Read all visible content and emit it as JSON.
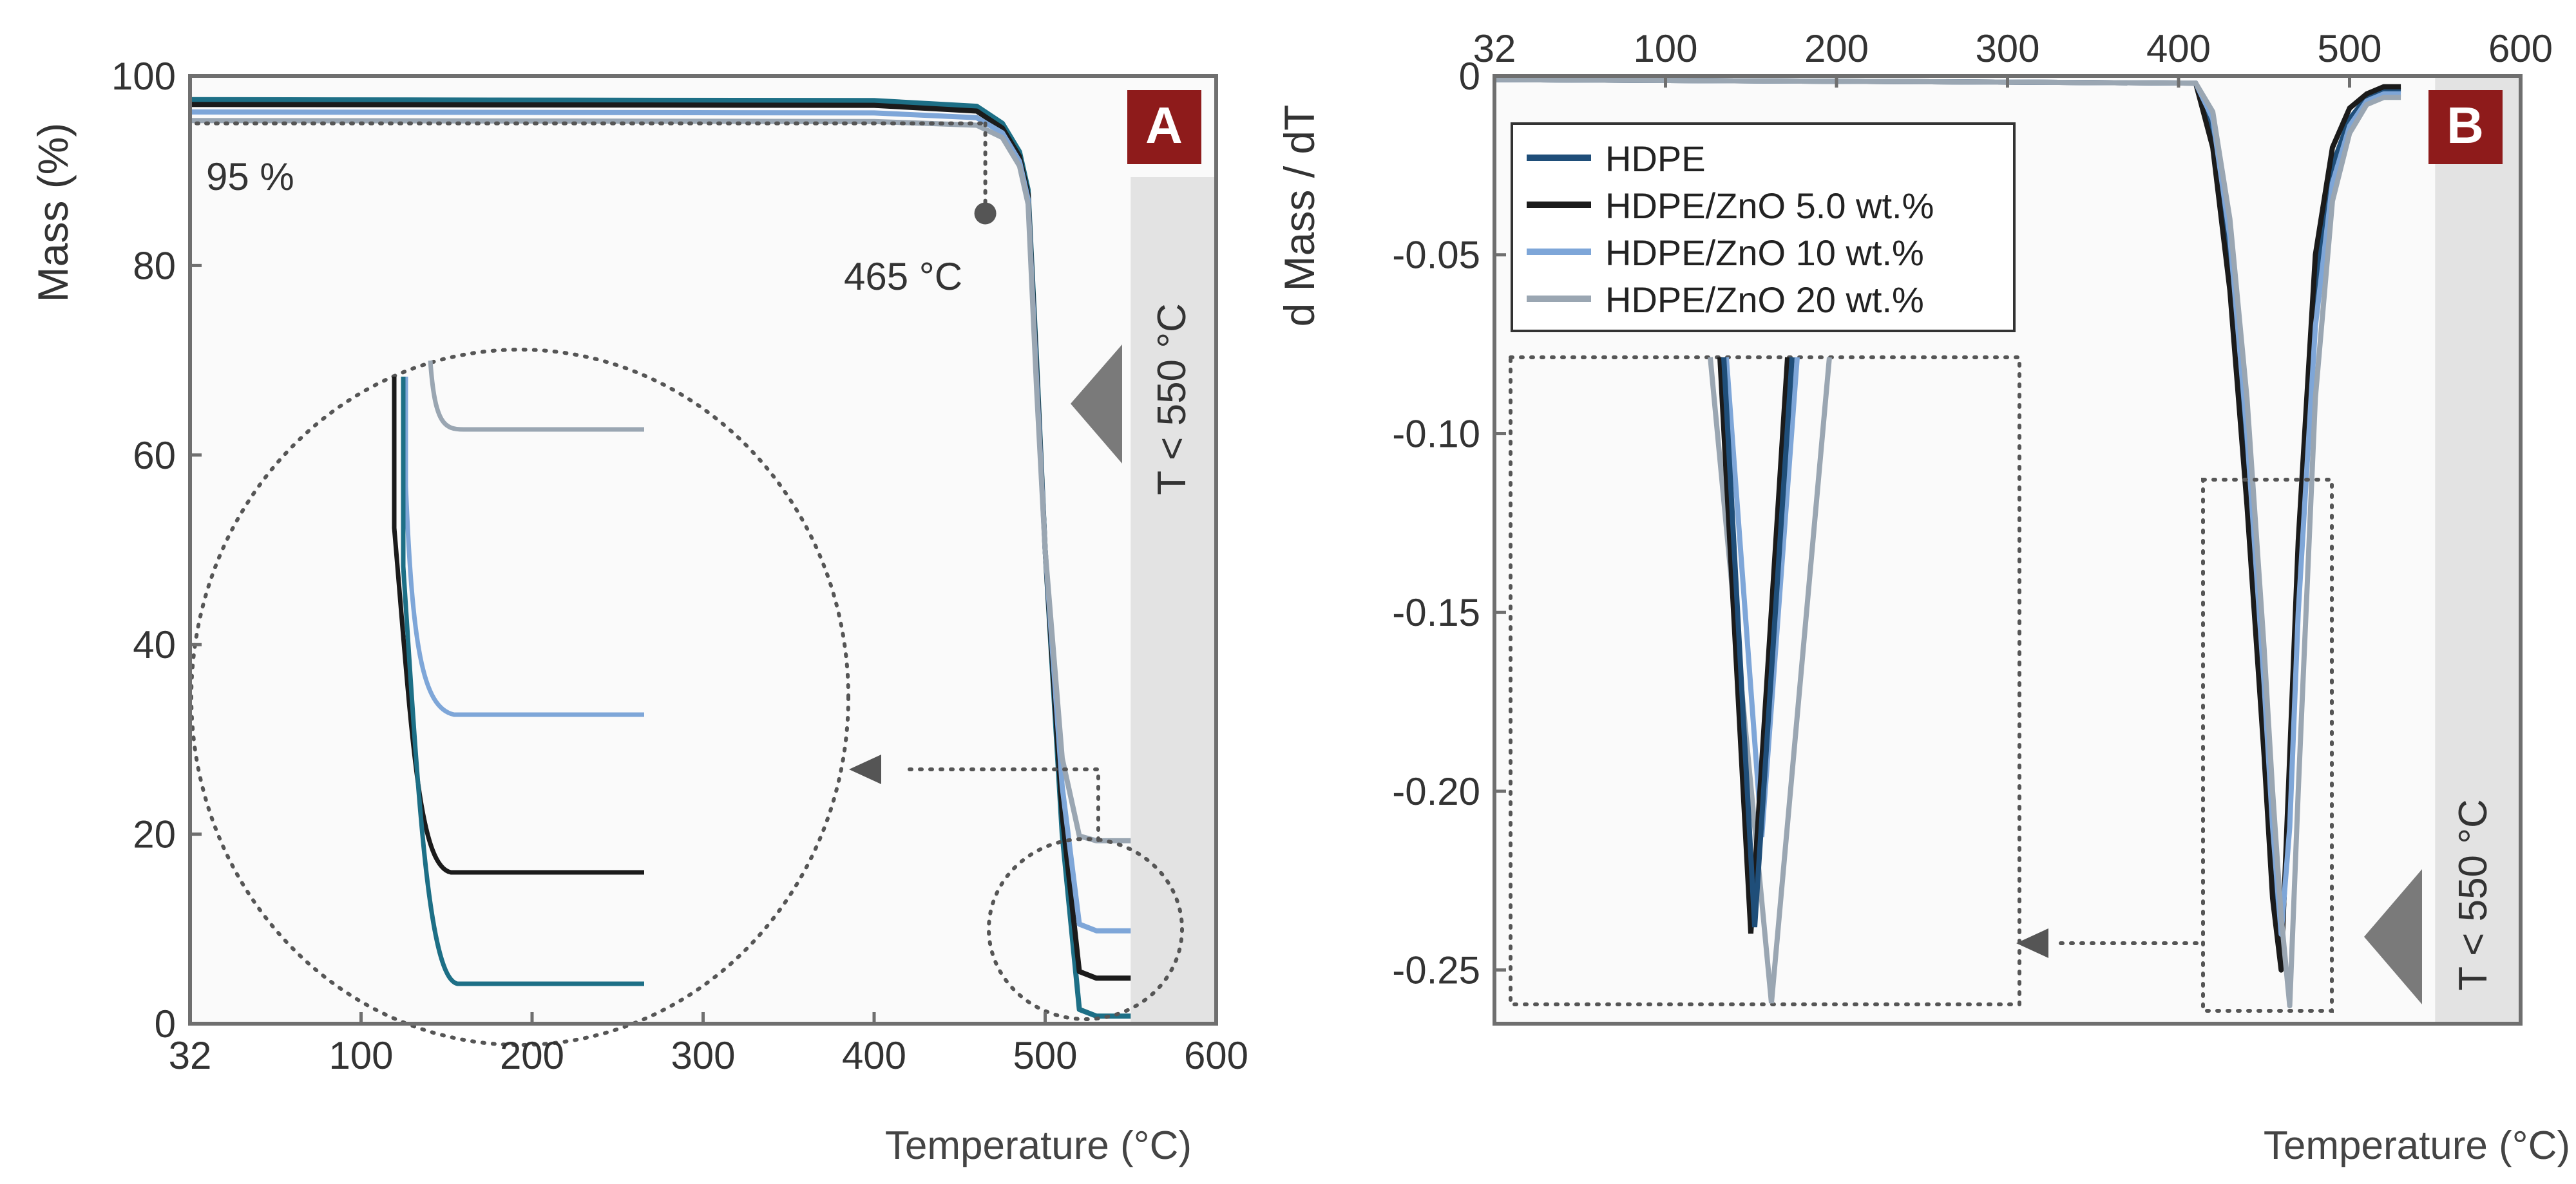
{
  "colors": {
    "hdpe": "#1f4e79",
    "zno5": "#1b1b1b",
    "zno10": "#7ea6d8",
    "zno20": "#9aa6b2",
    "teal": "#1d6f86",
    "frame": "#6f6f6f",
    "plot_bg": "#fafafa",
    "band": "#e3e3e3",
    "badge": "#8e1b1b",
    "annot": "#505050"
  },
  "chart_data": [
    {
      "type": "line",
      "panel": "A",
      "xlabel": "Temperature (°C)",
      "ylabel": "Mass (%)",
      "xlim": [
        32,
        600
      ],
      "ylim": [
        0,
        100
      ],
      "x_ticks": [
        "32",
        "100",
        "200",
        "300",
        "400",
        "500",
        "600"
      ],
      "y_ticks": [
        "0",
        "20",
        "40",
        "60",
        "80",
        "100"
      ],
      "series": [
        {
          "color": "teal",
          "x": [
            32,
            400,
            460,
            475,
            485,
            490,
            495,
            500,
            510,
            520,
            530,
            550
          ],
          "y": [
            97.5,
            97.4,
            96.8,
            95.0,
            92.0,
            88.0,
            70.0,
            50.0,
            20.0,
            1.5,
            0.8,
            0.8
          ]
        },
        {
          "color": "zno5",
          "x": [
            32,
            400,
            460,
            475,
            485,
            490,
            495,
            500,
            510,
            520,
            530,
            550
          ],
          "y": [
            97.0,
            96.9,
            96.3,
            94.5,
            91.5,
            87.5,
            69.0,
            50.0,
            22.0,
            5.5,
            4.8,
            4.8
          ]
        },
        {
          "color": "zno10",
          "x": [
            32,
            400,
            460,
            475,
            485,
            490,
            495,
            500,
            510,
            520,
            530,
            550
          ],
          "y": [
            96.2,
            96.1,
            95.6,
            94.0,
            91.0,
            87.0,
            68.0,
            50.0,
            25.0,
            10.5,
            9.8,
            9.8
          ]
        },
        {
          "color": "zno20",
          "x": [
            32,
            400,
            460,
            475,
            485,
            490,
            495,
            500,
            510,
            520,
            530,
            550
          ],
          "y": [
            95.3,
            95.2,
            94.8,
            93.5,
            90.5,
            86.5,
            67.0,
            50.0,
            28.0,
            19.8,
            19.3,
            19.3
          ]
        }
      ],
      "annotations": {
        "threshold_label": "95 %",
        "threshold_value": 95,
        "onset_label": "465 °C",
        "onset_x": 465,
        "region_label": "T < 550 °C",
        "region_from": 550,
        "badge": "A"
      }
    },
    {
      "type": "line",
      "panel": "B",
      "xlabel": "Temperature (°C)",
      "ylabel": "d Mass / dT",
      "xlim": [
        32,
        600
      ],
      "ylim": [
        -0.265,
        0
      ],
      "x_ticks": [
        "32",
        "100",
        "200",
        "300",
        "400",
        "500",
        "600"
      ],
      "y_ticks": [
        "0",
        "-0.05",
        "-0.10",
        "-0.15",
        "-0.20",
        "-0.25"
      ],
      "legend_position": "top-left",
      "series": [
        {
          "name": "HDPE",
          "color": "hdpe",
          "x": [
            32,
            410,
            420,
            430,
            440,
            450,
            455,
            460,
            465,
            470,
            480,
            490,
            500,
            510,
            520,
            530
          ],
          "y": [
            -0.001,
            -0.002,
            -0.015,
            -0.05,
            -0.11,
            -0.18,
            -0.22,
            -0.245,
            -0.2,
            -0.14,
            -0.06,
            -0.025,
            -0.012,
            -0.006,
            -0.004,
            -0.004
          ]
        },
        {
          "name": "HDPE/ZnO 5.0 wt.%",
          "color": "zno5",
          "x": [
            32,
            410,
            420,
            430,
            440,
            450,
            455,
            460,
            465,
            470,
            480,
            490,
            500,
            510,
            520,
            530
          ],
          "y": [
            -0.001,
            -0.002,
            -0.02,
            -0.06,
            -0.12,
            -0.19,
            -0.23,
            -0.25,
            -0.19,
            -0.13,
            -0.05,
            -0.02,
            -0.009,
            -0.005,
            -0.003,
            -0.003
          ]
        },
        {
          "name": "HDPE/ZnO 10 wt.%",
          "color": "zno10",
          "x": [
            32,
            410,
            420,
            430,
            440,
            450,
            455,
            460,
            465,
            470,
            480,
            490,
            500,
            510,
            520,
            530
          ],
          "y": [
            -0.001,
            -0.002,
            -0.012,
            -0.045,
            -0.1,
            -0.17,
            -0.21,
            -0.24,
            -0.21,
            -0.15,
            -0.07,
            -0.03,
            -0.014,
            -0.007,
            -0.005,
            -0.005
          ]
        },
        {
          "name": "HDPE/ZnO 20 wt.%",
          "color": "zno20",
          "x": [
            32,
            410,
            420,
            430,
            440,
            450,
            455,
            460,
            465,
            470,
            480,
            490,
            500,
            510,
            520,
            530
          ],
          "y": [
            -0.001,
            -0.002,
            -0.01,
            -0.04,
            -0.09,
            -0.16,
            -0.2,
            -0.235,
            -0.26,
            -0.2,
            -0.09,
            -0.035,
            -0.016,
            -0.008,
            -0.006,
            -0.006
          ]
        }
      ],
      "annotations": {
        "region_label": "T < 550 °C",
        "region_from": 550,
        "badge": "B"
      }
    }
  ]
}
